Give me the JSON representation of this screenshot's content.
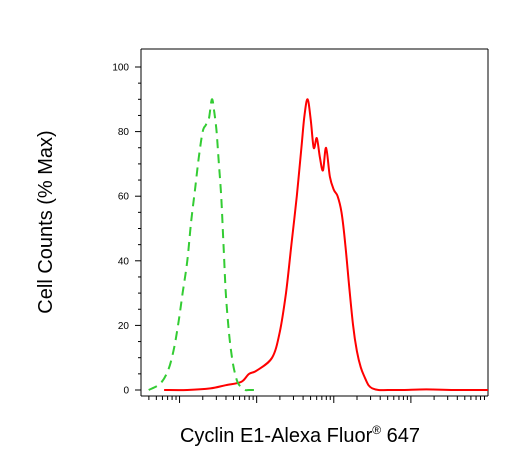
{
  "chart_data": {
    "type": "line",
    "xlabel": "Cyclin E1-Alexa Fluor",
    "xlabel_superscript": "®",
    "xlabel_suffix": " 647",
    "ylabel": "Cell Counts (% Max)",
    "ylim": [
      0,
      100
    ],
    "y_ticks": [
      "0",
      "20",
      "40",
      "60",
      "80",
      "100"
    ],
    "x_scale": "log",
    "xlim_decades": [
      -1.5,
      3
    ],
    "grid": false,
    "legend": "none",
    "series": [
      {
        "color": "#ff0000",
        "dash": "solid",
        "x": [
          -1.2,
          -0.9,
          -0.6,
          -0.4,
          -0.2,
          -0.1,
          0.0,
          0.2,
          0.3,
          0.38,
          0.45,
          0.52,
          0.58,
          0.62,
          0.66,
          0.7,
          0.74,
          0.78,
          0.82,
          0.86,
          0.9,
          0.95,
          1.0,
          1.05,
          1.1,
          1.15,
          1.2,
          1.25,
          1.3,
          1.35,
          1.4,
          1.45,
          1.5,
          1.58,
          1.7,
          1.9,
          2.2,
          2.6,
          3.0
        ],
        "y": [
          0,
          0,
          0.5,
          1.5,
          2.5,
          5,
          6,
          10,
          18,
          30,
          45,
          60,
          75,
          85,
          90,
          84,
          75,
          78,
          72,
          68,
          75,
          66,
          62,
          60,
          55,
          45,
          32,
          20,
          12,
          7,
          4,
          1.5,
          0.5,
          0,
          0,
          0,
          0.2,
          0,
          0
        ]
      },
      {
        "color": "#33cc33",
        "dash": "dashed",
        "x": [
          -1.4,
          -1.25,
          -1.15,
          -1.08,
          -1.02,
          -0.96,
          -0.9,
          -0.85,
          -0.8,
          -0.75,
          -0.7,
          -0.66,
          -0.62,
          -0.58,
          -0.55,
          -0.52,
          -0.49,
          -0.46,
          -0.43,
          -0.4,
          -0.36,
          -0.32,
          -0.28,
          -0.24,
          -0.2,
          -0.15,
          -0.1,
          0.0
        ],
        "y": [
          0,
          2,
          6,
          12,
          20,
          30,
          40,
          52,
          62,
          72,
          80,
          82,
          84,
          90,
          86,
          80,
          70,
          60,
          45,
          30,
          18,
          10,
          5,
          2,
          1,
          0,
          0,
          0
        ]
      }
    ]
  }
}
